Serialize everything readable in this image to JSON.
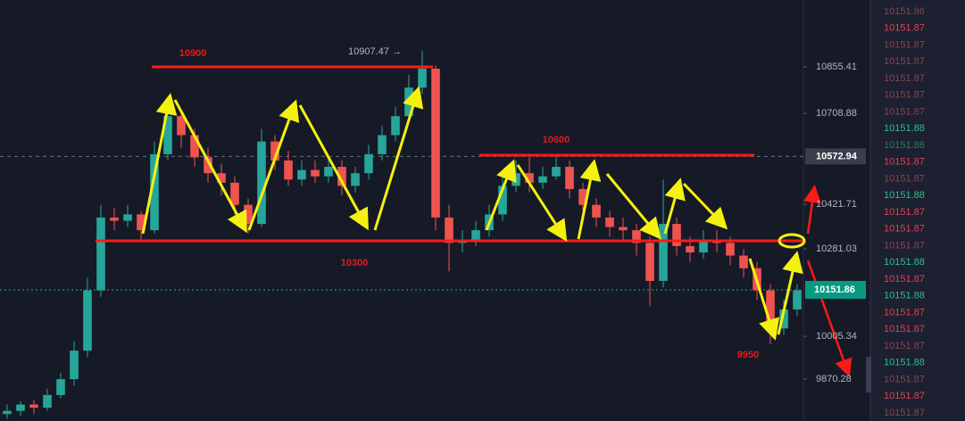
{
  "chart_data": {
    "type": "candlestick",
    "ylim": [
      9738,
      11066.5
    ],
    "yticks": [
      10855.41,
      10708.88,
      10421.71,
      10281.03,
      10005.34,
      9870.28
    ],
    "marked_price": 10572.94,
    "current_price": 10151.86,
    "up_color": "#26a69a",
    "down_color": "#ef5350",
    "candles": {
      "open": [
        9760,
        9770,
        9790,
        9780,
        9820,
        9870,
        9960,
        10150,
        10380,
        10370,
        10390,
        10340,
        10580,
        10700,
        10640,
        10570,
        10520,
        10490,
        10420,
        10360,
        10620,
        10560,
        10500,
        10530,
        10510,
        10540,
        10480,
        10520,
        10580,
        10640,
        10700,
        10790,
        10850,
        10380,
        10300,
        10310,
        10340,
        10390,
        10480,
        10520,
        10490,
        10510,
        10540,
        10470,
        10420,
        10380,
        10350,
        10340,
        10300,
        10180,
        10360,
        10290,
        10270,
        10310,
        10300,
        10260,
        10220,
        10150,
        10030,
        10090
      ],
      "high": [
        9790,
        9800,
        9805,
        9840,
        9890,
        9990,
        10190,
        10420,
        10410,
        10420,
        10400,
        10620,
        10740,
        10720,
        10660,
        10600,
        10550,
        10510,
        10440,
        10660,
        10640,
        10590,
        10560,
        10560,
        10570,
        10560,
        10540,
        10610,
        10670,
        10730,
        10830,
        10907.47,
        10860,
        10420,
        10340,
        10370,
        10420,
        10510,
        10560,
        10570,
        10540,
        10580,
        10560,
        10490,
        10440,
        10400,
        10380,
        10360,
        10320,
        10500,
        10380,
        10320,
        10340,
        10340,
        10320,
        10280,
        10240,
        10170,
        10120,
        10170
      ],
      "low": [
        9745,
        9755,
        9760,
        9770,
        9810,
        9850,
        9940,
        10130,
        10340,
        10350,
        10310,
        10330,
        10560,
        10600,
        10540,
        10490,
        10450,
        10390,
        10330,
        10350,
        10530,
        10480,
        10480,
        10490,
        10490,
        10450,
        10460,
        10500,
        10560,
        10620,
        10680,
        10770,
        10340,
        10210,
        10270,
        10290,
        10320,
        10370,
        10460,
        10460,
        10470,
        10500,
        10440,
        10390,
        10350,
        10320,
        10310,
        10260,
        10100,
        10160,
        10260,
        10240,
        10250,
        10270,
        10230,
        10190,
        10120,
        9980,
        10010,
        10070
      ],
      "close": [
        9770,
        9790,
        9780,
        9820,
        9870,
        9960,
        10150,
        10380,
        10370,
        10390,
        10340,
        10580,
        10700,
        10640,
        10570,
        10520,
        10490,
        10420,
        10360,
        10620,
        10560,
        10500,
        10530,
        10510,
        10540,
        10480,
        10520,
        10580,
        10640,
        10700,
        10790,
        10850,
        10380,
        10300,
        10310,
        10340,
        10390,
        10480,
        10520,
        10490,
        10510,
        10540,
        10470,
        10420,
        10380,
        10350,
        10340,
        10300,
        10180,
        10360,
        10290,
        10270,
        10310,
        10300,
        10260,
        10220,
        10150,
        10030,
        10090,
        10150
      ]
    },
    "annotations": [
      "10900",
      "10600",
      "10300",
      "9950",
      "10907.47 →"
    ]
  },
  "order_book": [
    {
      "price": 10151.86,
      "color": "#8a4450"
    },
    {
      "price": 10151.87,
      "color": "#e0434f"
    },
    {
      "price": 10151.87,
      "color": "#8a4450"
    },
    {
      "price": 10151.87,
      "color": "#8a4450"
    },
    {
      "price": 10151.87,
      "color": "#8a4450"
    },
    {
      "price": 10151.87,
      "color": "#8a4450"
    },
    {
      "price": 10151.87,
      "color": "#8a4450"
    },
    {
      "price": 10151.88,
      "color": "#2fbf8a"
    },
    {
      "price": 10151.88,
      "color": "#2c7a5e"
    },
    {
      "price": 10151.87,
      "color": "#e0434f"
    },
    {
      "price": 10151.87,
      "color": "#8a4450"
    },
    {
      "price": 10151.88,
      "color": "#2fbf8a"
    },
    {
      "price": 10151.87,
      "color": "#e0434f"
    },
    {
      "price": 10151.87,
      "color": "#e0434f"
    },
    {
      "price": 10151.87,
      "color": "#8a4450"
    },
    {
      "price": 10151.88,
      "color": "#2fbf8a"
    },
    {
      "price": 10151.87,
      "color": "#e0434f"
    },
    {
      "price": 10151.88,
      "color": "#2fbf8a"
    },
    {
      "price": 10151.87,
      "color": "#e0434f"
    },
    {
      "price": 10151.87,
      "color": "#e0434f"
    },
    {
      "price": 10151.87,
      "color": "#8a4450"
    },
    {
      "price": 10151.88,
      "color": "#2fbf8a"
    },
    {
      "price": 10151.87,
      "color": "#8a4450"
    },
    {
      "price": 10151.87,
      "color": "#e0434f"
    },
    {
      "price": 10151.87,
      "color": "#8a4450"
    }
  ]
}
